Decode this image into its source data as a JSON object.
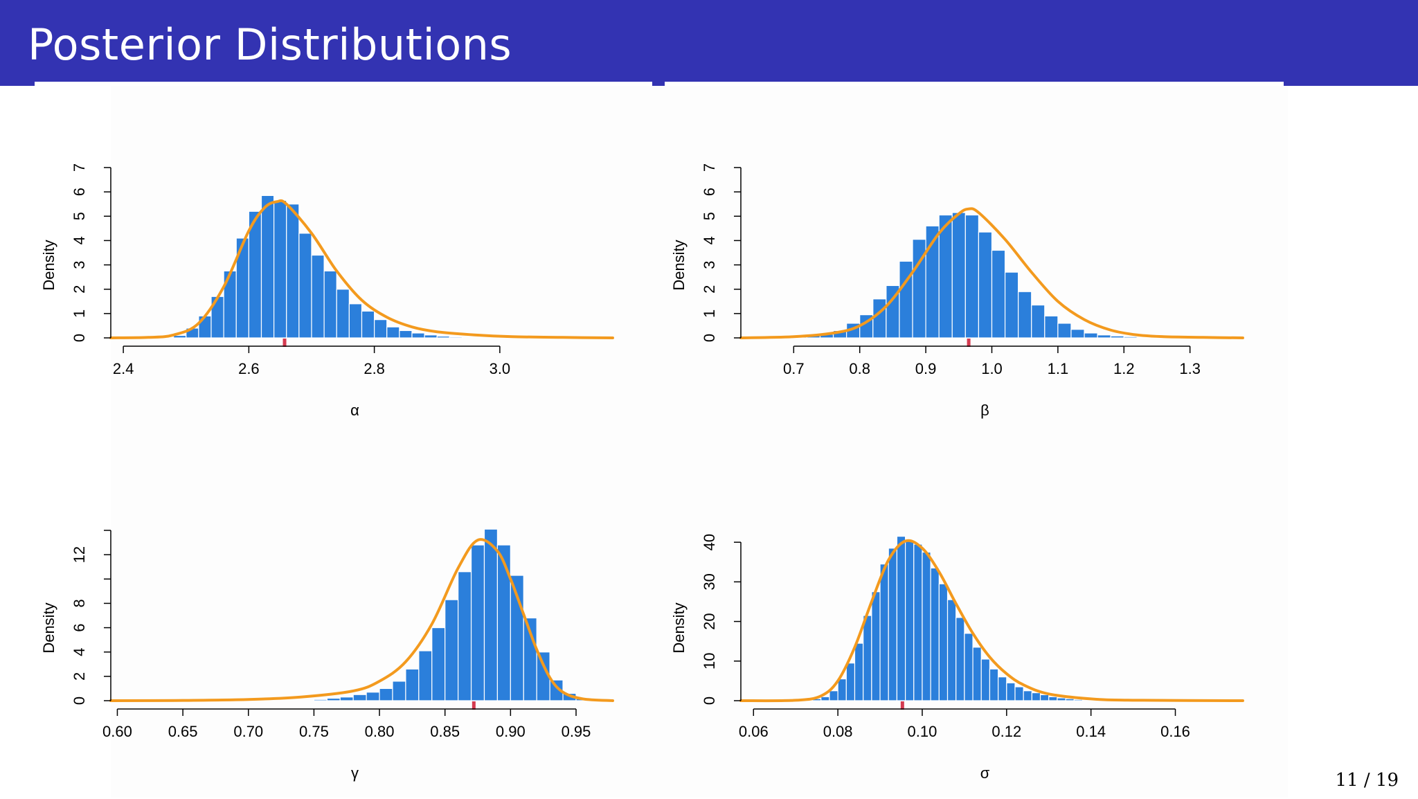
{
  "slide": {
    "title": "Posterior Distributions",
    "page_number": "11 / 19",
    "colors": {
      "header": "#3333b2",
      "bar": "#2b7fdb",
      "curve": "#f39a1e",
      "marker": "#d43b50"
    }
  },
  "chart_data": [
    {
      "type": "bar",
      "panel": "top-left",
      "xlabel": "α",
      "ylabel": "Density",
      "xlim": [
        2.38,
        3.18
      ],
      "ylim": [
        0,
        7
      ],
      "xticks": [
        2.4,
        2.6,
        2.8,
        3.0
      ],
      "xtick_labels": [
        "2.4",
        "2.6",
        "2.8",
        "3.0"
      ],
      "yticks": [
        0,
        1,
        2,
        3,
        4,
        5,
        6,
        7
      ],
      "ytick_labels": [
        "0",
        "1",
        "2",
        "3",
        "4",
        "5",
        "6",
        "7"
      ],
      "bin_start": 2.48,
      "bin_width": 0.02,
      "values": [
        0.1,
        0.4,
        0.9,
        1.7,
        2.75,
        4.1,
        5.2,
        5.85,
        5.65,
        5.5,
        4.3,
        3.4,
        2.75,
        2.0,
        1.4,
        1.1,
        0.75,
        0.45,
        0.3,
        0.2,
        0.12,
        0.07,
        0.04
      ],
      "density_curve": {
        "x": [
          2.38,
          2.44,
          2.48,
          2.52,
          2.56,
          2.6,
          2.625,
          2.645,
          2.66,
          2.7,
          2.74,
          2.78,
          2.82,
          2.86,
          2.9,
          2.96,
          3.02,
          3.1,
          3.18
        ],
        "y": [
          0,
          0.02,
          0.12,
          0.6,
          2.1,
          4.4,
          5.35,
          5.6,
          5.5,
          4.3,
          2.75,
          1.55,
          0.85,
          0.45,
          0.25,
          0.12,
          0.05,
          0.02,
          0.0
        ]
      },
      "estimate": 2.657
    },
    {
      "type": "bar",
      "panel": "top-right",
      "xlabel": "β",
      "ylabel": "Density",
      "xlim": [
        0.62,
        1.38
      ],
      "ylim": [
        0,
        7
      ],
      "xticks": [
        0.7,
        0.8,
        0.9,
        1.0,
        1.1,
        1.2,
        1.3
      ],
      "xtick_labels": [
        "0.7",
        "0.8",
        "0.9",
        "1.0",
        "1.1",
        "1.2",
        "1.3"
      ],
      "yticks": [
        0,
        1,
        2,
        3,
        4,
        5,
        6,
        7
      ],
      "ytick_labels": [
        "0",
        "1",
        "2",
        "3",
        "4",
        "5",
        "6",
        "7"
      ],
      "bin_start": 0.7,
      "bin_width": 0.02,
      "values": [
        0.05,
        0.1,
        0.15,
        0.3,
        0.6,
        0.95,
        1.6,
        2.15,
        3.15,
        4.05,
        4.6,
        5.05,
        5.15,
        5.05,
        4.35,
        3.6,
        2.7,
        1.9,
        1.35,
        0.9,
        0.6,
        0.35,
        0.2,
        0.12,
        0.08,
        0.05,
        0.03
      ],
      "density_curve": {
        "x": [
          0.62,
          0.7,
          0.76,
          0.8,
          0.84,
          0.88,
          0.92,
          0.95,
          0.965,
          0.98,
          1.02,
          1.06,
          1.1,
          1.14,
          1.18,
          1.22,
          1.26,
          1.32,
          1.38
        ],
        "y": [
          0,
          0.05,
          0.2,
          0.5,
          1.3,
          2.7,
          4.3,
          5.1,
          5.3,
          5.15,
          4.05,
          2.7,
          1.5,
          0.75,
          0.32,
          0.12,
          0.05,
          0.02,
          0.0
        ]
      },
      "estimate": 0.965
    },
    {
      "type": "bar",
      "panel": "bottom-left",
      "xlabel": "γ",
      "ylabel": "Density",
      "xlim": [
        0.595,
        0.978
      ],
      "ylim": [
        0,
        14
      ],
      "xticks": [
        0.6,
        0.65,
        0.7,
        0.75,
        0.8,
        0.85,
        0.9,
        0.95
      ],
      "xtick_labels": [
        "0.60",
        "0.65",
        "0.70",
        "0.75",
        "0.80",
        "0.85",
        "0.90",
        "0.95"
      ],
      "yticks": [
        0,
        2,
        4,
        6,
        8,
        10,
        12,
        14
      ],
      "ytick_labels": [
        "0",
        "2",
        "4",
        "6",
        "8",
        "",
        "12",
        ""
      ],
      "bin_start": 0.75,
      "bin_width": 0.01,
      "values": [
        0.1,
        0.2,
        0.3,
        0.5,
        0.7,
        1.0,
        1.6,
        2.6,
        4.1,
        6.0,
        8.3,
        10.6,
        12.8,
        14.1,
        12.8,
        10.3,
        6.8,
        4.0,
        1.7,
        0.6,
        0.15
      ],
      "density_curve": {
        "x": [
          0.595,
          0.65,
          0.7,
          0.74,
          0.78,
          0.8,
          0.82,
          0.84,
          0.86,
          0.875,
          0.89,
          0.9,
          0.91,
          0.92,
          0.93,
          0.94,
          0.955,
          0.978
        ],
        "y": [
          0,
          0.02,
          0.1,
          0.3,
          0.8,
          1.6,
          3.2,
          6.3,
          10.9,
          13.2,
          12.3,
          10.0,
          7.1,
          4.2,
          1.9,
          0.7,
          0.15,
          0.0
        ]
      },
      "estimate": 0.872
    },
    {
      "type": "bar",
      "panel": "bottom-right",
      "xlabel": "σ",
      "ylabel": "Density",
      "xlim": [
        0.057,
        0.176
      ],
      "ylim": [
        0,
        43
      ],
      "xticks": [
        0.06,
        0.08,
        0.1,
        0.12,
        0.14,
        0.16
      ],
      "xtick_labels": [
        "0.06",
        "0.08",
        "0.10",
        "0.12",
        "0.14",
        "0.16"
      ],
      "yticks": [
        0,
        10,
        20,
        30,
        40
      ],
      "ytick_labels": [
        "0",
        "10",
        "20",
        "30",
        "40"
      ],
      "bin_start": 0.074,
      "bin_width": 0.002,
      "values": [
        0.5,
        1.0,
        2.5,
        5.5,
        9.5,
        14.5,
        21.5,
        27.5,
        34.5,
        38.5,
        41.5,
        40.5,
        39.5,
        37.5,
        33.5,
        29.5,
        25.5,
        21.0,
        17.0,
        13.5,
        10.5,
        8.0,
        6.0,
        4.5,
        3.5,
        2.5,
        2.0,
        1.5,
        1.0,
        0.7,
        0.5,
        0.3
      ],
      "density_curve": {
        "x": [
          0.057,
          0.07,
          0.076,
          0.08,
          0.084,
          0.088,
          0.092,
          0.096,
          0.1,
          0.104,
          0.108,
          0.112,
          0.116,
          0.12,
          0.124,
          0.13,
          0.14,
          0.15,
          0.176
        ],
        "y": [
          0,
          0.1,
          1.2,
          5.0,
          13.5,
          25.0,
          35.5,
          40.3,
          38.5,
          32.5,
          24.5,
          17.0,
          11.0,
          6.8,
          4.0,
          1.7,
          0.45,
          0.12,
          0.0
        ]
      },
      "estimate": 0.0953
    }
  ]
}
